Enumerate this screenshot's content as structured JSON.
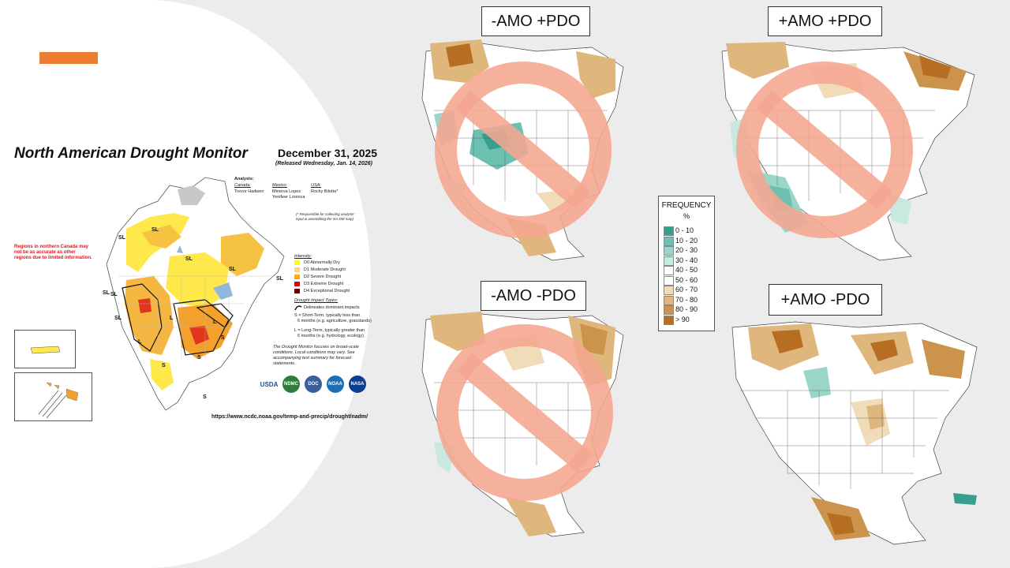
{
  "accent_color": "#ed7d31",
  "drought_monitor": {
    "title": "North American Drought Monitor",
    "date": "December 31, 2025",
    "released": "(Released Wednesday, Jan. 14, 2026)",
    "analysts_heading": "Analysts:",
    "canada_label": "Canada:",
    "canada_analyst": "Trevor Hadwen",
    "mexico_label": "Mexico:",
    "mexico_analyst_1": "Minerva Lopez",
    "mexico_analyst_2": "Yenifeer Lorenca",
    "usa_label": "USA:",
    "usa_analyst": "Rocky Bilotta*",
    "responsible_note_1": "(* Responsible for collecting analysts'",
    "responsible_note_2": "input & assembling the NA-DM map)",
    "warning": "Regions in northern Canada may not be as accurate as other regions due to limited information.",
    "intensity_heading": "Intensity:",
    "intensity": [
      {
        "label": "D0 Abnormally Dry",
        "color": "#ffff00"
      },
      {
        "label": "D1 Moderate Drought",
        "color": "#fcd37f"
      },
      {
        "label": "D2 Severe Drought",
        "color": "#ffaa00"
      },
      {
        "label": "D3 Extreme Drought",
        "color": "#e60000"
      },
      {
        "label": "D4 Exceptional Drought",
        "color": "#730000"
      }
    ],
    "impact_heading": "Drought Impact Types:",
    "impact_line": "Delineates dominant impacts",
    "short_term_1": "S = Short-Term, typically less than",
    "short_term_2": "6 months (e.g. agriculture, grasslands)",
    "long_term_1": "L = Long-Term, typically greater than",
    "long_term_2": "6 months (e.g. hydrology, ecology)",
    "focus_note_1": "The Drought Monitor focuses on broad-scale",
    "focus_note_2": "conditions. Local conditions may vary. See",
    "focus_note_3": "accompanying text summary for forecast",
    "focus_note_4": "statements.",
    "url": "https://www.ncdc.noaa.gov/temp-and-precip/drought/nadm/",
    "logos": [
      "USDA",
      "NDMC",
      "DOC",
      "NOAA",
      "NASA"
    ],
    "map_labels": [
      "SL",
      "SL",
      "SL",
      "SL",
      "SL",
      "SL",
      "L",
      "L",
      "L",
      "S",
      "S",
      "S",
      "S",
      "SL",
      "SL"
    ]
  },
  "maps": [
    {
      "label": "-AMO +PDO",
      "crossed_out": true
    },
    {
      "label": "+AMO +PDO",
      "crossed_out": true
    },
    {
      "label": "-AMO -PDO",
      "crossed_out": true
    },
    {
      "label": "+AMO -PDO",
      "crossed_out": false
    }
  ],
  "frequency_legend": {
    "title": "FREQUENCY",
    "unit": "%",
    "bins": [
      {
        "label": "0 - 10",
        "color": "#3a9e8f"
      },
      {
        "label": "10 - 20",
        "color": "#6cc0b0"
      },
      {
        "label": "20 - 30",
        "color": "#9ad6c8"
      },
      {
        "label": "30 - 40",
        "color": "#c8e9e0"
      },
      {
        "label": "40 - 50",
        "color": "#ffffff"
      },
      {
        "label": "50 - 60",
        "color": "#ffffff"
      },
      {
        "label": "60 - 70",
        "color": "#f0dcb8"
      },
      {
        "label": "70 - 80",
        "color": "#dfb67c"
      },
      {
        "label": "80 - 90",
        "color": "#cc934c"
      },
      {
        "label": "> 90",
        "color": "#b56e22"
      }
    ]
  },
  "no_symbol_color": "#f5a68f"
}
